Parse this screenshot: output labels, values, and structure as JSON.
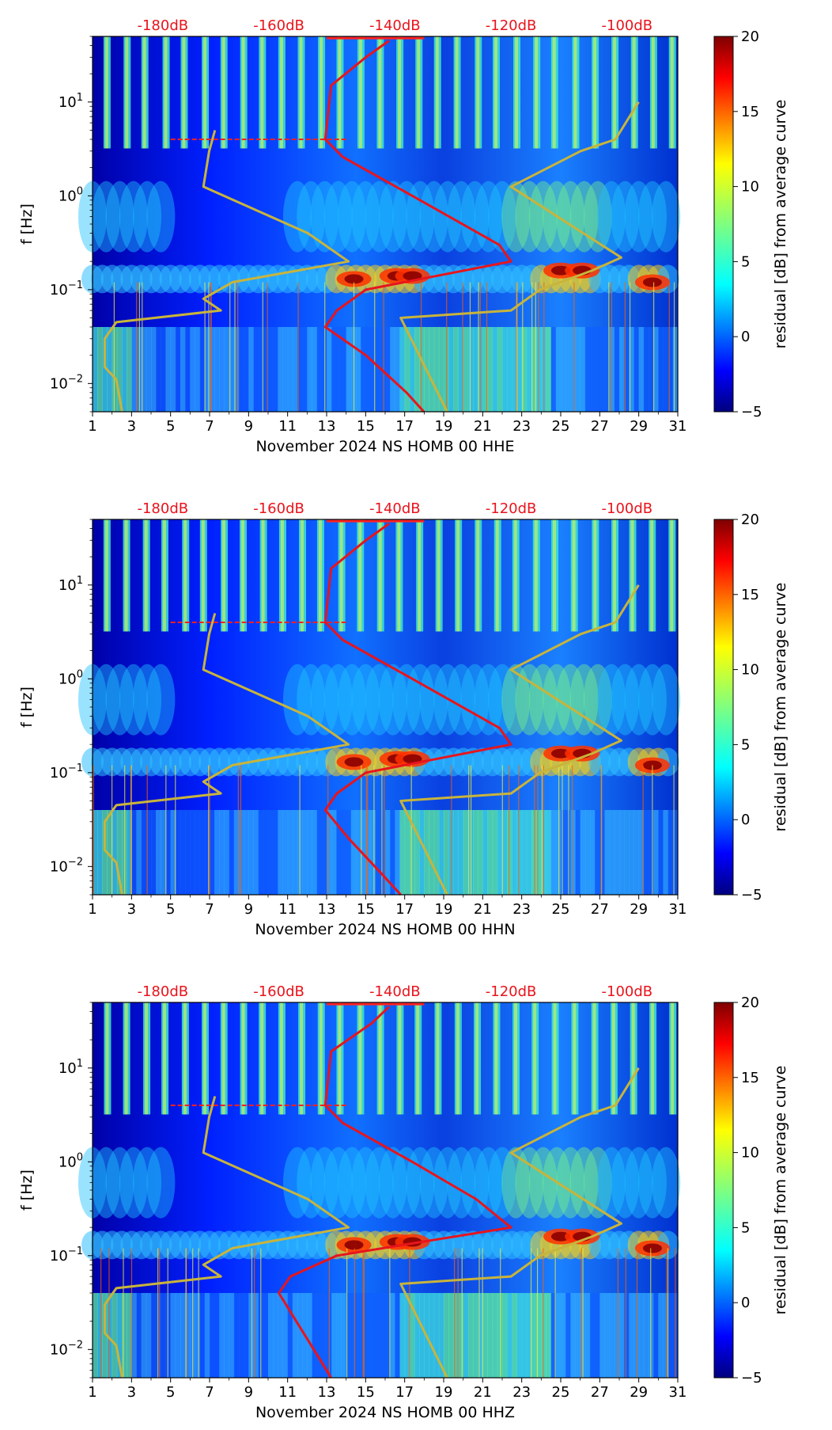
{
  "chart_data": [
    {
      "type": "heatmap",
      "title": "",
      "xlabel": "November 2024 NS HOMB 00 HHE",
      "ylabel": "f [Hz]",
      "colorbar_label": "residual [dB] from average curve",
      "colorbar_ticks": [
        "20",
        "15",
        "10",
        "5",
        "0",
        "−5"
      ],
      "colorbar_range": [
        -5,
        20
      ],
      "x_ticks": [
        "1",
        "3",
        "5",
        "7",
        "9",
        "11",
        "13",
        "15",
        "17",
        "19",
        "21",
        "23",
        "25",
        "27",
        "29",
        "31"
      ],
      "xlim": [
        1,
        31
      ],
      "y_ticks": [
        {
          "base": "10",
          "exp": "1"
        },
        {
          "base": "10",
          "exp": "0"
        },
        {
          "base": "10",
          "exp": "−1"
        },
        {
          "base": "10",
          "exp": "−2"
        }
      ],
      "ylim": [
        0.005,
        50
      ],
      "yscale": "log",
      "top_db_labels": [
        "-180dB",
        "-160dB",
        "-140dB",
        "-120dB",
        "-100dB"
      ],
      "average_curve_db_freq": [
        [
          -141,
          45
        ],
        [
          -145,
          30
        ],
        [
          -151,
          15
        ],
        [
          -152,
          4
        ],
        [
          -149,
          2.6
        ],
        [
          -137,
          1.0
        ],
        [
          -122,
          0.3
        ],
        [
          -120,
          0.2
        ],
        [
          -145,
          0.1
        ],
        [
          -150,
          0.06
        ],
        [
          -152,
          0.04
        ],
        [
          -145,
          0.02
        ],
        [
          -138,
          0.008
        ],
        [
          -135,
          0.005
        ]
      ],
      "reference_curve_db_freq": [
        [
          -171,
          5
        ],
        [
          -172,
          3
        ],
        [
          -173,
          1.25
        ],
        [
          -155,
          0.4
        ],
        [
          -148,
          0.2
        ],
        [
          -168,
          0.12
        ],
        [
          -173,
          0.08
        ],
        [
          -170,
          0.06
        ],
        [
          -188,
          0.045
        ],
        [
          -190,
          0.03
        ],
        [
          -190,
          0.015
        ],
        [
          -188,
          0.011
        ],
        [
          -187,
          0.005
        ]
      ],
      "reference_curve2_db_freq": [
        [
          -98,
          10
        ],
        [
          -102,
          4
        ],
        [
          -108,
          3
        ],
        [
          -120,
          1.25
        ],
        [
          -101,
          0.22
        ],
        [
          -106,
          0.16
        ],
        [
          -115,
          0.1
        ],
        [
          -120,
          0.06
        ],
        [
          -139,
          0.05
        ],
        [
          -131,
          0.005
        ]
      ]
    },
    {
      "type": "heatmap",
      "title": "",
      "xlabel": "November 2024 NS HOMB 00 HHN",
      "ylabel": "f [Hz]",
      "colorbar_label": "residual [dB] from average curve",
      "colorbar_ticks": [
        "20",
        "15",
        "10",
        "5",
        "0",
        "−5"
      ],
      "colorbar_range": [
        -5,
        20
      ],
      "x_ticks": [
        "1",
        "3",
        "5",
        "7",
        "9",
        "11",
        "13",
        "15",
        "17",
        "19",
        "21",
        "23",
        "25",
        "27",
        "29",
        "31"
      ],
      "xlim": [
        1,
        31
      ],
      "y_ticks": [
        {
          "base": "10",
          "exp": "1"
        },
        {
          "base": "10",
          "exp": "0"
        },
        {
          "base": "10",
          "exp": "−1"
        },
        {
          "base": "10",
          "exp": "−2"
        }
      ],
      "ylim": [
        0.005,
        50
      ],
      "yscale": "log",
      "top_db_labels": [
        "-180dB",
        "-160dB",
        "-140dB",
        "-120dB",
        "-100dB"
      ],
      "average_curve_db_freq": [
        [
          -141,
          45
        ],
        [
          -145,
          30
        ],
        [
          -151,
          15
        ],
        [
          -152,
          4
        ],
        [
          -149,
          2.6
        ],
        [
          -137,
          1.0
        ],
        [
          -122,
          0.3
        ],
        [
          -120,
          0.2
        ],
        [
          -145,
          0.1
        ],
        [
          -150,
          0.06
        ],
        [
          -152,
          0.04
        ],
        [
          -148,
          0.02
        ],
        [
          -142,
          0.008
        ],
        [
          -139,
          0.005
        ]
      ],
      "reference_curve_db_freq": [
        [
          -171,
          5
        ],
        [
          -172,
          3
        ],
        [
          -173,
          1.25
        ],
        [
          -155,
          0.4
        ],
        [
          -148,
          0.2
        ],
        [
          -168,
          0.12
        ],
        [
          -173,
          0.08
        ],
        [
          -170,
          0.06
        ],
        [
          -188,
          0.045
        ],
        [
          -190,
          0.03
        ],
        [
          -190,
          0.015
        ],
        [
          -188,
          0.011
        ],
        [
          -187,
          0.005
        ]
      ],
      "reference_curve2_db_freq": [
        [
          -98,
          10
        ],
        [
          -102,
          4
        ],
        [
          -108,
          3
        ],
        [
          -120,
          1.25
        ],
        [
          -101,
          0.22
        ],
        [
          -106,
          0.16
        ],
        [
          -115,
          0.1
        ],
        [
          -120,
          0.06
        ],
        [
          -139,
          0.05
        ],
        [
          -131,
          0.005
        ]
      ]
    },
    {
      "type": "heatmap",
      "title": "",
      "xlabel": "November 2024 NS HOMB 00 HHZ",
      "ylabel": "f [Hz]",
      "colorbar_label": "residual [dB] from average curve",
      "colorbar_ticks": [
        "20",
        "15",
        "10",
        "5",
        "0",
        "−5"
      ],
      "colorbar_range": [
        -5,
        20
      ],
      "x_ticks": [
        "1",
        "3",
        "5",
        "7",
        "9",
        "11",
        "13",
        "15",
        "17",
        "19",
        "21",
        "23",
        "25",
        "27",
        "29",
        "31"
      ],
      "xlim": [
        1,
        31
      ],
      "y_ticks": [
        {
          "base": "10",
          "exp": "1"
        },
        {
          "base": "10",
          "exp": "0"
        },
        {
          "base": "10",
          "exp": "−1"
        },
        {
          "base": "10",
          "exp": "−2"
        }
      ],
      "ylim": [
        0.005,
        50
      ],
      "yscale": "log",
      "top_db_labels": [
        "-180dB",
        "-160dB",
        "-140dB",
        "-120dB",
        "-100dB"
      ],
      "average_curve_db_freq": [
        [
          -141,
          45
        ],
        [
          -144,
          30
        ],
        [
          -151,
          15
        ],
        [
          -152,
          4
        ],
        [
          -149,
          2.6
        ],
        [
          -137,
          1.0
        ],
        [
          -126,
          0.4
        ],
        [
          -120,
          0.2
        ],
        [
          -150,
          0.1
        ],
        [
          -158,
          0.06
        ],
        [
          -160,
          0.04
        ],
        [
          -157,
          0.02
        ],
        [
          -153,
          0.008
        ],
        [
          -151,
          0.005
        ]
      ],
      "reference_curve_db_freq": [
        [
          -171,
          5
        ],
        [
          -172,
          3
        ],
        [
          -173,
          1.25
        ],
        [
          -155,
          0.4
        ],
        [
          -148,
          0.2
        ],
        [
          -168,
          0.12
        ],
        [
          -173,
          0.08
        ],
        [
          -170,
          0.06
        ],
        [
          -188,
          0.045
        ],
        [
          -190,
          0.03
        ],
        [
          -190,
          0.015
        ],
        [
          -188,
          0.011
        ],
        [
          -187,
          0.005
        ]
      ],
      "reference_curve2_db_freq": [
        [
          -98,
          10
        ],
        [
          -102,
          4
        ],
        [
          -108,
          3
        ],
        [
          -120,
          1.25
        ],
        [
          -101,
          0.22
        ],
        [
          -106,
          0.16
        ],
        [
          -115,
          0.1
        ],
        [
          -120,
          0.06
        ],
        [
          -139,
          0.05
        ],
        [
          -131,
          0.005
        ]
      ]
    }
  ],
  "colors": {
    "colormap": [
      "#00007f",
      "#0000ff",
      "#007fff",
      "#00ffff",
      "#7fff7f",
      "#ffff00",
      "#ff7f00",
      "#ff0000",
      "#7f0000"
    ],
    "average_curve": "#e8141c",
    "reference_curves": "#c8b43c",
    "db_labels": "#e8141c"
  }
}
